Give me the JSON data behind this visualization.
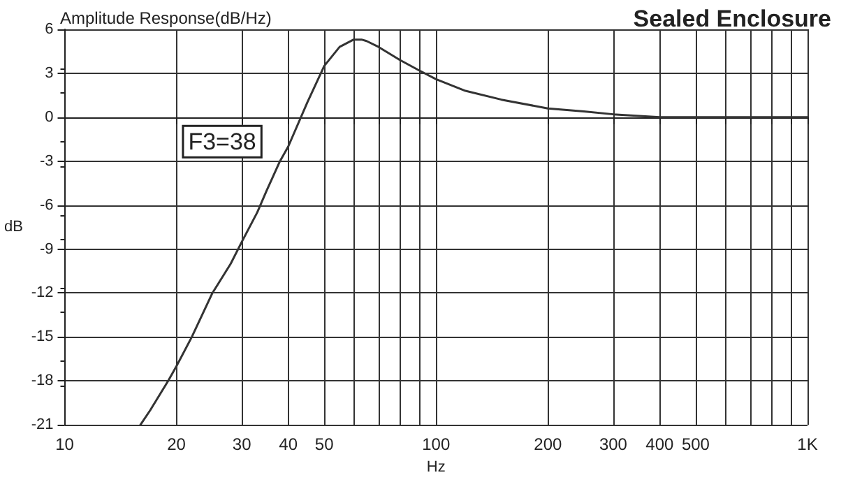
{
  "chart_data": {
    "type": "line",
    "title": "Amplitude Response(dB/Hz)",
    "subtitle": "Sealed Enclosure",
    "xlabel": "Hz",
    "ylabel": "dB",
    "x": [
      16,
      17,
      19,
      20,
      22,
      25,
      28,
      30,
      33,
      35,
      38,
      40,
      45,
      50,
      55,
      60,
      63,
      65,
      70,
      80,
      90,
      100,
      120,
      150,
      200,
      250,
      300,
      400,
      500,
      700,
      1000
    ],
    "series": [
      {
        "color": "#333333",
        "values": [
          -21,
          -20,
          -18,
          -17,
          -15,
          -12,
          -10,
          -8.5,
          -6.5,
          -5,
          -3,
          -2,
          1,
          3.5,
          4.8,
          5.3,
          5.3,
          5.2,
          4.8,
          3.9,
          3.2,
          2.6,
          1.8,
          1.2,
          0.6,
          0.4,
          0.2,
          0,
          0,
          0,
          0
        ]
      }
    ],
    "annotations": [
      {
        "text": "F3=38",
        "x": 38,
        "y": -3
      }
    ],
    "log": "x",
    "xlim": [
      10,
      1000
    ],
    "xticks": [
      10,
      20,
      30,
      40,
      50,
      {
        "value": 60,
        "label": null
      },
      {
        "value": 70,
        "label": null
      },
      {
        "value": 80,
        "label": null
      },
      {
        "value": 90,
        "label": null
      },
      100,
      200,
      300,
      400,
      500,
      {
        "value": 600,
        "label": null
      },
      {
        "value": 700,
        "label": null
      },
      {
        "value": 800,
        "label": null
      },
      {
        "value": 900,
        "label": null
      },
      {
        "value": 1000,
        "label": "1K"
      }
    ],
    "ylim": [
      -21,
      6
    ],
    "yticks": [
      -21,
      -18,
      -15,
      -12,
      -9,
      -6,
      -3,
      0,
      3,
      6
    ],
    "grid": true,
    "marker": "none",
    "line_style": "solid"
  }
}
